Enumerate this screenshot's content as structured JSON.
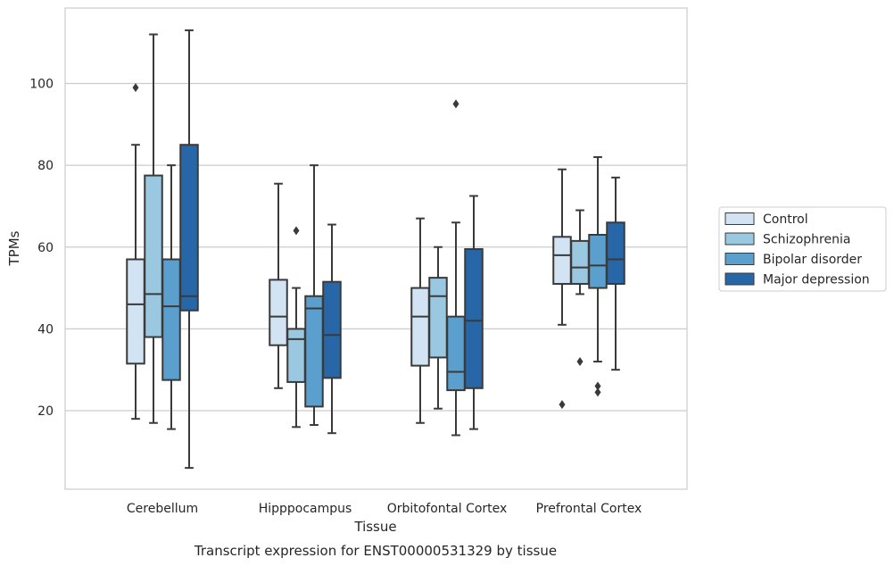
{
  "chart_data": {
    "type": "box",
    "title": "",
    "caption": "Transcript expression for ENST00000531329 by tissue",
    "xlabel": "Tissue",
    "ylabel": "TPMs",
    "ylim": [
      0,
      118
    ],
    "yticks": [
      20,
      40,
      60,
      80,
      100
    ],
    "grid": "horizontal",
    "legend_position": "right",
    "categories": [
      "Cerebellum",
      "Hipppocampus",
      "Orbitofontal Cortex",
      "Prefrontal Cortex"
    ],
    "series": [
      {
        "name": "Control",
        "color": "#d2e3f3",
        "boxes": [
          {
            "whisker_low": 18,
            "q1": 31.5,
            "median": 46,
            "q3": 57,
            "whisker_high": 85,
            "outliers": [
              99
            ]
          },
          {
            "whisker_low": 25.5,
            "q1": 36,
            "median": 43,
            "q3": 52,
            "whisker_high": 75.5,
            "outliers": []
          },
          {
            "whisker_low": 17,
            "q1": 31,
            "median": 43,
            "q3": 50,
            "whisker_high": 67,
            "outliers": []
          },
          {
            "whisker_low": 41,
            "q1": 51,
            "median": 58,
            "q3": 62.5,
            "whisker_high": 79,
            "outliers": [
              21.5
            ]
          }
        ]
      },
      {
        "name": "Schizophrenia",
        "color": "#9ac8e0",
        "boxes": [
          {
            "whisker_low": 17,
            "q1": 38,
            "median": 48.5,
            "q3": 77.5,
            "whisker_high": 112,
            "outliers": []
          },
          {
            "whisker_low": 16,
            "q1": 27,
            "median": 37.5,
            "q3": 40,
            "whisker_high": 50,
            "outliers": [
              64
            ]
          },
          {
            "whisker_low": 20.5,
            "q1": 33,
            "median": 48,
            "q3": 52.5,
            "whisker_high": 60,
            "outliers": []
          },
          {
            "whisker_low": 48.5,
            "q1": 51,
            "median": 55,
            "q3": 61.5,
            "whisker_high": 69,
            "outliers": [
              32
            ]
          }
        ]
      },
      {
        "name": "Bipolar disorder",
        "color": "#5a9fcd",
        "boxes": [
          {
            "whisker_low": 15.5,
            "q1": 27.5,
            "median": 45.5,
            "q3": 57,
            "whisker_high": 80,
            "outliers": []
          },
          {
            "whisker_low": 16.5,
            "q1": 21,
            "median": 45,
            "q3": 48,
            "whisker_high": 80,
            "outliers": []
          },
          {
            "whisker_low": 14,
            "q1": 25,
            "median": 29.5,
            "q3": 43,
            "whisker_high": 66,
            "outliers": [
              95
            ]
          },
          {
            "whisker_low": 32,
            "q1": 50,
            "median": 55.5,
            "q3": 63,
            "whisker_high": 82,
            "outliers": [
              24.5,
              26
            ]
          }
        ]
      },
      {
        "name": "Major depression",
        "color": "#2767a8",
        "boxes": [
          {
            "whisker_low": 6,
            "q1": 44.5,
            "median": 48,
            "q3": 85,
            "whisker_high": 113,
            "outliers": []
          },
          {
            "whisker_low": 14.5,
            "q1": 28,
            "median": 38.5,
            "q3": 51.5,
            "whisker_high": 65.5,
            "outliers": []
          },
          {
            "whisker_low": 15.5,
            "q1": 25.5,
            "median": 42,
            "q3": 59.5,
            "whisker_high": 72.5,
            "outliers": []
          },
          {
            "whisker_low": 30,
            "q1": 51,
            "median": 57,
            "q3": 66,
            "whisker_high": 77,
            "outliers": []
          }
        ]
      }
    ]
  }
}
